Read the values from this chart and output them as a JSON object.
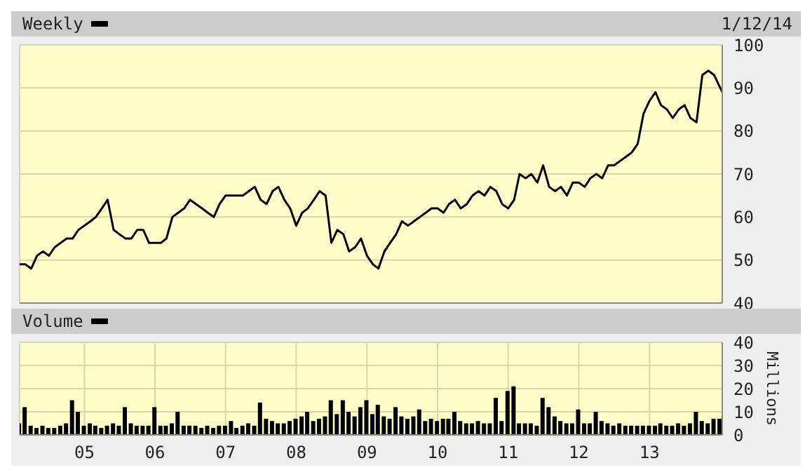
{
  "chart_data": [
    {
      "type": "line",
      "annotations": [
        "1/12/14"
      ],
      "legend": "top left",
      "grid": true,
      "tick_labels": "y",
      "xlim": [
        "2004-02-01",
        "2014-01-12"
      ],
      "xticks": [
        {
          "value": "2005-01-01",
          "label": null
        },
        {
          "value": "2006-01-01",
          "label": null
        },
        {
          "value": "2007-01-01",
          "label": null
        },
        {
          "value": "2008-01-01",
          "label": null
        },
        {
          "value": "2009-01-01",
          "label": null
        },
        {
          "value": "2010-01-01",
          "label": null
        },
        {
          "value": "2011-01-01",
          "label": null
        },
        {
          "value": "2012-01-01",
          "label": null
        },
        {
          "value": "2013-01-01",
          "label": null
        }
      ],
      "ylim": [
        40,
        100
      ],
      "yticks": [
        40,
        50,
        60,
        70,
        80,
        90,
        100
      ],
      "x": [
        "2004-02",
        "2004-03",
        "2004-04",
        "2004-05",
        "2004-06",
        "2004-07",
        "2004-08",
        "2004-09",
        "2004-10",
        "2004-11",
        "2004-12",
        "2005-01",
        "2005-02",
        "2005-03",
        "2005-04",
        "2005-05",
        "2005-06",
        "2005-07",
        "2005-08",
        "2005-09",
        "2005-10",
        "2005-11",
        "2005-12",
        "2006-01",
        "2006-02",
        "2006-03",
        "2006-04",
        "2006-05",
        "2006-06",
        "2006-07",
        "2006-08",
        "2006-09",
        "2006-10",
        "2006-11",
        "2006-12",
        "2007-01",
        "2007-02",
        "2007-03",
        "2007-04",
        "2007-05",
        "2007-06",
        "2007-07",
        "2007-08",
        "2007-09",
        "2007-10",
        "2007-11",
        "2007-12",
        "2008-01",
        "2008-02",
        "2008-03",
        "2008-04",
        "2008-05",
        "2008-06",
        "2008-07",
        "2008-08",
        "2008-09",
        "2008-10",
        "2008-11",
        "2008-12",
        "2009-01",
        "2009-02",
        "2009-03",
        "2009-04",
        "2009-05",
        "2009-06",
        "2009-07",
        "2009-08",
        "2009-09",
        "2009-10",
        "2009-11",
        "2009-12",
        "2010-01",
        "2010-02",
        "2010-03",
        "2010-04",
        "2010-05",
        "2010-06",
        "2010-07",
        "2010-08",
        "2010-09",
        "2010-10",
        "2010-11",
        "2010-12",
        "2011-01",
        "2011-02",
        "2011-03",
        "2011-04",
        "2011-05",
        "2011-06",
        "2011-07",
        "2011-08",
        "2011-09",
        "2011-10",
        "2011-11",
        "2011-12",
        "2012-01",
        "2012-02",
        "2012-03",
        "2012-04",
        "2012-05",
        "2012-06",
        "2012-07",
        "2012-08",
        "2012-09",
        "2012-10",
        "2012-11",
        "2012-12",
        "2013-01",
        "2013-02",
        "2013-03",
        "2013-04",
        "2013-05",
        "2013-06",
        "2013-07",
        "2013-08",
        "2013-09",
        "2013-10",
        "2013-11",
        "2013-12",
        "2014-01-12"
      ],
      "series": [
        {
          "name": "Weekly",
          "color": "#000000",
          "values": [
            49,
            49,
            48,
            51,
            52,
            51,
            53,
            54,
            55,
            55,
            57,
            58,
            59,
            60,
            62,
            64,
            57,
            56,
            55,
            55,
            57,
            57,
            54,
            54,
            54,
            55,
            60,
            61,
            62,
            64,
            63,
            62,
            61,
            60,
            63,
            65,
            65,
            65,
            65,
            66,
            67,
            64,
            63,
            66,
            67,
            64,
            62,
            58,
            61,
            62,
            64,
            66,
            65,
            54,
            57,
            56,
            52,
            53,
            55,
            51,
            49,
            48,
            52,
            54,
            56,
            59,
            58,
            59,
            60,
            61,
            62,
            62,
            61,
            63,
            64,
            62,
            63,
            65,
            66,
            65,
            67,
            66,
            63,
            62,
            64,
            70,
            69,
            70,
            68,
            72,
            67,
            66,
            67,
            65,
            68,
            68,
            67,
            69,
            70,
            69,
            72,
            72,
            73,
            74,
            75,
            77,
            84,
            87,
            89,
            86,
            85,
            83,
            85,
            86,
            83,
            82,
            93,
            94,
            93,
            89
          ]
        }
      ]
    },
    {
      "type": "bar",
      "ylabel": "Millions",
      "legend": "top left",
      "grid": true,
      "xlim": [
        "2004-02-01",
        "2014-01-12"
      ],
      "xticks": [
        {
          "value": "2005-01-01",
          "label": "05"
        },
        {
          "value": "2006-01-01",
          "label": "06"
        },
        {
          "value": "2007-01-01",
          "label": "07"
        },
        {
          "value": "2008-01-01",
          "label": "08"
        },
        {
          "value": "2009-01-01",
          "label": "09"
        },
        {
          "value": "2010-01-01",
          "label": "10"
        },
        {
          "value": "2011-01-01",
          "label": "11"
        },
        {
          "value": "2012-01-01",
          "label": "12"
        },
        {
          "value": "2013-01-01",
          "label": "13"
        }
      ],
      "ylim": [
        0,
        40
      ],
      "yticks": [
        0,
        10,
        20,
        30,
        40
      ],
      "x": [
        "2004-02",
        "2004-03",
        "2004-04",
        "2004-05",
        "2004-06",
        "2004-07",
        "2004-08",
        "2004-09",
        "2004-10",
        "2004-11",
        "2004-12",
        "2005-01",
        "2005-02",
        "2005-03",
        "2005-04",
        "2005-05",
        "2005-06",
        "2005-07",
        "2005-08",
        "2005-09",
        "2005-10",
        "2005-11",
        "2005-12",
        "2006-01",
        "2006-02",
        "2006-03",
        "2006-04",
        "2006-05",
        "2006-06",
        "2006-07",
        "2006-08",
        "2006-09",
        "2006-10",
        "2006-11",
        "2006-12",
        "2007-01",
        "2007-02",
        "2007-03",
        "2007-04",
        "2007-05",
        "2007-06",
        "2007-07",
        "2007-08",
        "2007-09",
        "2007-10",
        "2007-11",
        "2007-12",
        "2008-01",
        "2008-02",
        "2008-03",
        "2008-04",
        "2008-05",
        "2008-06",
        "2008-07",
        "2008-08",
        "2008-09",
        "2008-10",
        "2008-11",
        "2008-12",
        "2009-01",
        "2009-02",
        "2009-03",
        "2009-04",
        "2009-05",
        "2009-06",
        "2009-07",
        "2009-08",
        "2009-09",
        "2009-10",
        "2009-11",
        "2009-12",
        "2010-01",
        "2010-02",
        "2010-03",
        "2010-04",
        "2010-05",
        "2010-06",
        "2010-07",
        "2010-08",
        "2010-09",
        "2010-10",
        "2010-11",
        "2010-12",
        "2011-01",
        "2011-02",
        "2011-03",
        "2011-04",
        "2011-05",
        "2011-06",
        "2011-07",
        "2011-08",
        "2011-09",
        "2011-10",
        "2011-11",
        "2011-12",
        "2012-01",
        "2012-02",
        "2012-03",
        "2012-04",
        "2012-05",
        "2012-06",
        "2012-07",
        "2012-08",
        "2012-09",
        "2012-10",
        "2012-11",
        "2012-12",
        "2013-01",
        "2013-02",
        "2013-03",
        "2013-04",
        "2013-05",
        "2013-06",
        "2013-07",
        "2013-08",
        "2013-09",
        "2013-10",
        "2013-11",
        "2013-12",
        "2014-01"
      ],
      "series": [
        {
          "name": "Volume",
          "color": "#000000",
          "values": [
            5,
            12,
            4,
            3,
            4,
            3,
            3,
            4,
            5,
            15,
            10,
            4,
            5,
            4,
            3,
            4,
            5,
            4,
            12,
            5,
            4,
            4,
            4,
            12,
            4,
            4,
            5,
            10,
            4,
            4,
            4,
            3,
            4,
            3,
            4,
            4,
            6,
            3,
            4,
            5,
            4,
            14,
            7,
            6,
            5,
            5,
            6,
            7,
            8,
            10,
            6,
            7,
            8,
            15,
            9,
            15,
            10,
            8,
            12,
            15,
            9,
            13,
            8,
            7,
            12,
            8,
            7,
            8,
            11,
            6,
            7,
            6,
            7,
            7,
            10,
            6,
            5,
            5,
            6,
            5,
            5,
            16,
            6,
            19,
            21,
            5,
            5,
            5,
            4,
            16,
            12,
            8,
            6,
            5,
            5,
            11,
            5,
            5,
            10,
            6,
            5,
            4,
            5,
            4,
            4,
            4,
            4,
            4,
            4,
            5,
            4,
            4,
            5,
            4,
            5,
            10,
            6,
            5,
            7,
            7
          ]
        }
      ]
    }
  ]
}
